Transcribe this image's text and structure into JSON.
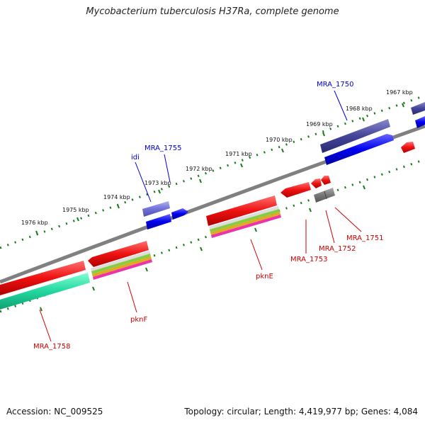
{
  "title": "Mycobacterium tuberculosis H37Ra, complete genome",
  "footer": {
    "accession": "Accession: NC_009525",
    "summary": "Topology: circular; Length: 4,419,977 bp; Genes: 4,084"
  },
  "colors": {
    "backbone": "#808080",
    "tick": "#1a7a1a",
    "forward_gene": "#0000ee",
    "forward_label": "#0000cc",
    "reverse_gene": "#ee1111",
    "reverse_label": "#cc0000",
    "rrna_like": "#3333aa",
    "pseudo": "#777777",
    "teal": "#22d7a0"
  },
  "kbp_labels": [
    "1976 kbp",
    "1975 kbp",
    "1974 kbp",
    "1973 kbp",
    "1972 kbp",
    "1971 kbp",
    "1970 kbp",
    "1969 kbp",
    "1968 kbp",
    "1967 kbp"
  ],
  "gene_labels": {
    "idi": "idi",
    "MRA_1755": "MRA_1755",
    "MRA_1750": "MRA_1750",
    "MRA_1758": "MRA_1758",
    "pknF": "pknF",
    "pknE": "pknE",
    "MRA_1753": "MRA_1753",
    "MRA_1752": "MRA_1752",
    "MRA_1751": "MRA_1751"
  }
}
